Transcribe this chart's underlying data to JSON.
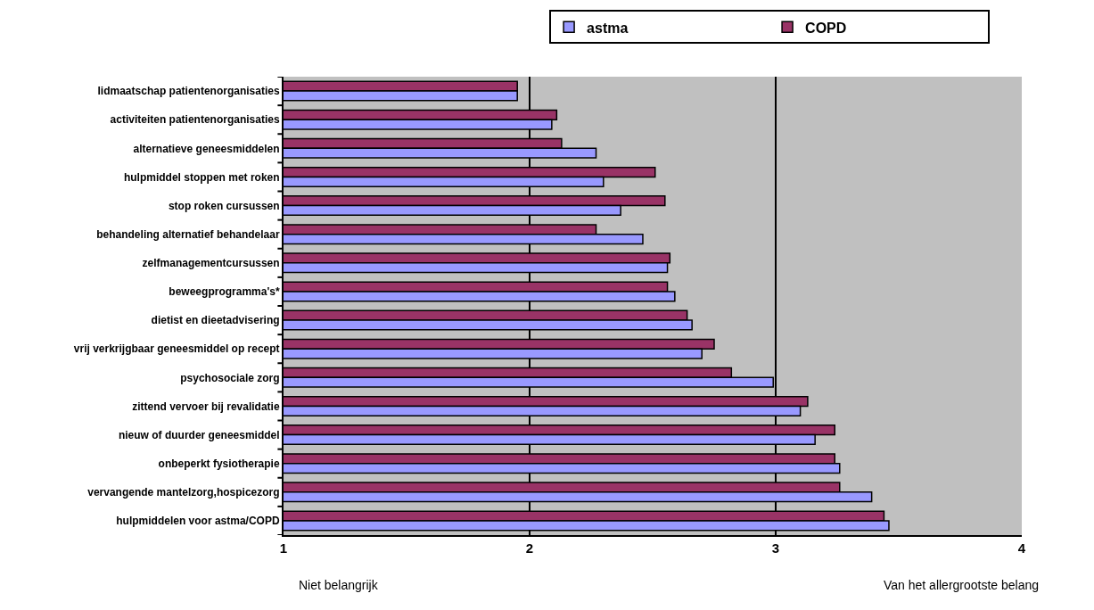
{
  "chart_data": {
    "type": "bar",
    "orientation": "horizontal",
    "categories": [
      "lidmaatschap patientenorganisaties",
      "activiteiten patientenorganisaties",
      "alternatieve geneesmiddelen",
      "hulpmiddel stoppen met roken",
      "stop roken cursussen",
      "behandeling alternatief behandelaar",
      "zelfmanagementcursussen",
      "beweegprogramma's*",
      "dietist en dieetadvisering",
      "vrij verkrijgbaar geneesmiddel op recept",
      "psychosociale zorg",
      "zittend vervoer bij revalidatie",
      "nieuw of duurder geneesmiddel",
      "onbeperkt fysiotherapie",
      "vervangende mantelzorg,hospicezorg",
      "hulpmiddelen voor astma/COPD"
    ],
    "series": [
      {
        "name": "astma",
        "color": "#9999ff",
        "values": [
          1.95,
          2.09,
          2.27,
          2.3,
          2.37,
          2.46,
          2.56,
          2.59,
          2.66,
          2.7,
          2.99,
          3.1,
          3.16,
          3.26,
          3.39,
          3.46
        ]
      },
      {
        "name": "COPD",
        "color": "#993366",
        "values": [
          1.95,
          2.11,
          2.13,
          2.51,
          2.55,
          2.27,
          2.57,
          2.56,
          2.64,
          2.75,
          2.82,
          3.13,
          3.24,
          3.24,
          3.26,
          3.44
        ]
      }
    ],
    "xlim": [
      1,
      4
    ],
    "xticks": [
      1,
      2,
      3,
      4
    ],
    "grid": "x",
    "legend": "top",
    "annotations": [
      "Niet belangrijk",
      "Van het allergrootste belang"
    ]
  }
}
